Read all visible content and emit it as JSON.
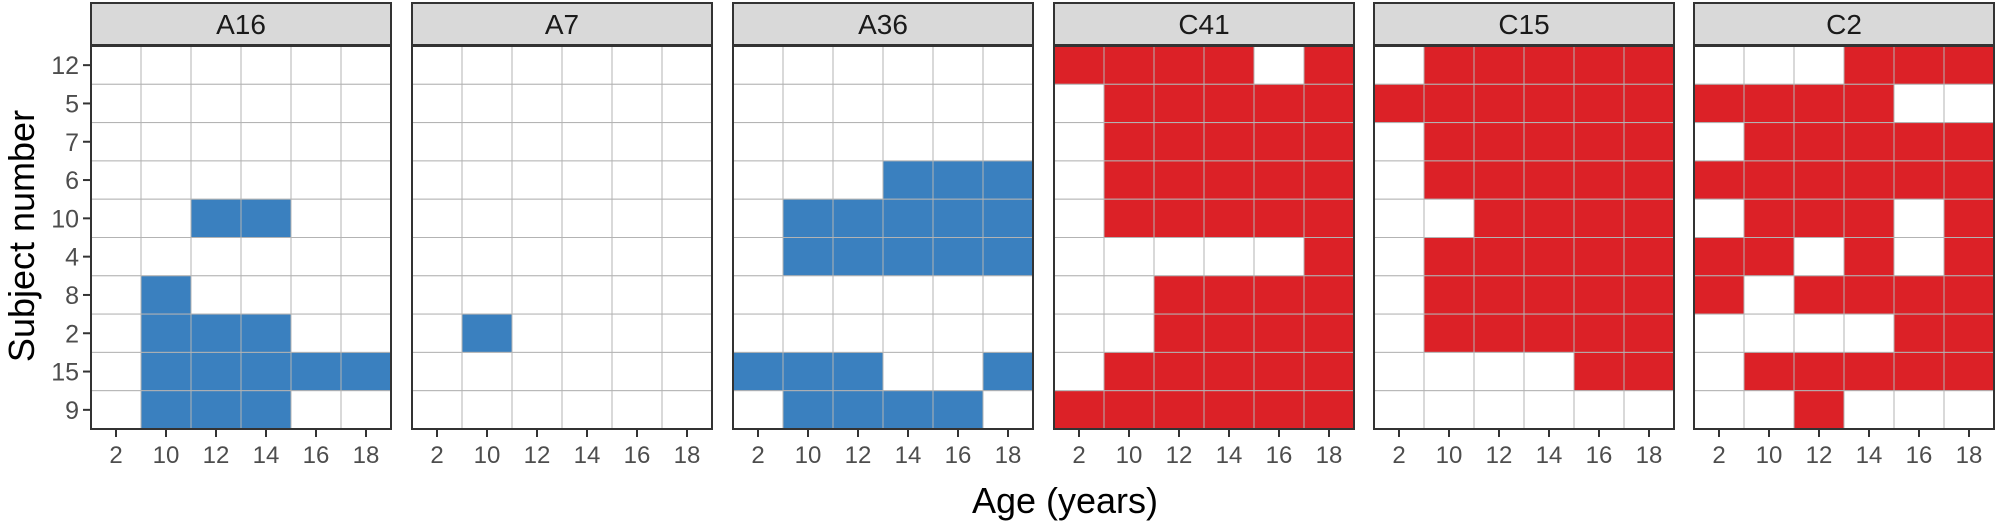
{
  "chart_data": {
    "type": "heatmap",
    "xlabel": "Age (years)",
    "ylabel": "Subject number",
    "x_ticks": [
      "2",
      "10",
      "12",
      "14",
      "16",
      "18"
    ],
    "subjects": [
      "12",
      "5",
      "7",
      "6",
      "10",
      "4",
      "8",
      "2",
      "15",
      "9"
    ],
    "grid": true,
    "colors": {
      "A": "#3a80bf",
      "C": "#dc2127",
      "empty": "#ffffff",
      "strip": "#d9d9d9",
      "gridline": "#b3b3b3",
      "frame": "#333333"
    },
    "panels": [
      {
        "name": "A16",
        "group": "A",
        "cells": [
          [
            0,
            0,
            0,
            0,
            0,
            0
          ],
          [
            0,
            0,
            0,
            0,
            0,
            0
          ],
          [
            0,
            0,
            0,
            0,
            0,
            0
          ],
          [
            0,
            0,
            0,
            0,
            0,
            0
          ],
          [
            0,
            0,
            1,
            1,
            0,
            0
          ],
          [
            0,
            0,
            0,
            0,
            0,
            0
          ],
          [
            0,
            1,
            0,
            0,
            0,
            0
          ],
          [
            0,
            1,
            1,
            1,
            0,
            0
          ],
          [
            0,
            1,
            1,
            1,
            1,
            1
          ],
          [
            0,
            1,
            1,
            1,
            0,
            0
          ]
        ]
      },
      {
        "name": "A7",
        "group": "A",
        "cells": [
          [
            0,
            0,
            0,
            0,
            0,
            0
          ],
          [
            0,
            0,
            0,
            0,
            0,
            0
          ],
          [
            0,
            0,
            0,
            0,
            0,
            0
          ],
          [
            0,
            0,
            0,
            0,
            0,
            0
          ],
          [
            0,
            0,
            0,
            0,
            0,
            0
          ],
          [
            0,
            0,
            0,
            0,
            0,
            0
          ],
          [
            0,
            0,
            0,
            0,
            0,
            0
          ],
          [
            0,
            1,
            0,
            0,
            0,
            0
          ],
          [
            0,
            0,
            0,
            0,
            0,
            0
          ],
          [
            0,
            0,
            0,
            0,
            0,
            0
          ]
        ]
      },
      {
        "name": "A36",
        "group": "A",
        "cells": [
          [
            0,
            0,
            0,
            0,
            0,
            0
          ],
          [
            0,
            0,
            0,
            0,
            0,
            0
          ],
          [
            0,
            0,
            0,
            0,
            0,
            0
          ],
          [
            0,
            0,
            0,
            1,
            1,
            1
          ],
          [
            0,
            1,
            1,
            1,
            1,
            1
          ],
          [
            0,
            1,
            1,
            1,
            1,
            1
          ],
          [
            0,
            0,
            0,
            0,
            0,
            0
          ],
          [
            0,
            0,
            0,
            0,
            0,
            0
          ],
          [
            1,
            1,
            1,
            0,
            0,
            1
          ],
          [
            0,
            1,
            1,
            1,
            1,
            0
          ]
        ]
      },
      {
        "name": "C41",
        "group": "C",
        "cells": [
          [
            1,
            1,
            1,
            1,
            0,
            1
          ],
          [
            0,
            1,
            1,
            1,
            1,
            1
          ],
          [
            0,
            1,
            1,
            1,
            1,
            1
          ],
          [
            0,
            1,
            1,
            1,
            1,
            1
          ],
          [
            0,
            1,
            1,
            1,
            1,
            1
          ],
          [
            0,
            0,
            0,
            0,
            0,
            1
          ],
          [
            0,
            0,
            1,
            1,
            1,
            1
          ],
          [
            0,
            0,
            1,
            1,
            1,
            1
          ],
          [
            0,
            1,
            1,
            1,
            1,
            1
          ],
          [
            1,
            1,
            1,
            1,
            1,
            1
          ]
        ]
      },
      {
        "name": "C15",
        "group": "C",
        "cells": [
          [
            0,
            1,
            1,
            1,
            1,
            1
          ],
          [
            1,
            1,
            1,
            1,
            1,
            1
          ],
          [
            0,
            1,
            1,
            1,
            1,
            1
          ],
          [
            0,
            1,
            1,
            1,
            1,
            1
          ],
          [
            0,
            0,
            1,
            1,
            1,
            1
          ],
          [
            0,
            1,
            1,
            1,
            1,
            1
          ],
          [
            0,
            1,
            1,
            1,
            1,
            1
          ],
          [
            0,
            1,
            1,
            1,
            1,
            1
          ],
          [
            0,
            0,
            0,
            0,
            1,
            1
          ],
          [
            0,
            0,
            0,
            0,
            0,
            0
          ]
        ]
      },
      {
        "name": "C2",
        "group": "C",
        "cells": [
          [
            0,
            0,
            0,
            1,
            1,
            1
          ],
          [
            1,
            1,
            1,
            1,
            0,
            0
          ],
          [
            0,
            1,
            1,
            1,
            1,
            1
          ],
          [
            1,
            1,
            1,
            1,
            1,
            1
          ],
          [
            0,
            1,
            1,
            1,
            0,
            1
          ],
          [
            1,
            1,
            0,
            1,
            0,
            1
          ],
          [
            1,
            0,
            1,
            1,
            1,
            1
          ],
          [
            0,
            0,
            0,
            0,
            1,
            1
          ],
          [
            0,
            1,
            1,
            1,
            1,
            1
          ],
          [
            0,
            0,
            1,
            0,
            0,
            0
          ]
        ]
      }
    ]
  }
}
